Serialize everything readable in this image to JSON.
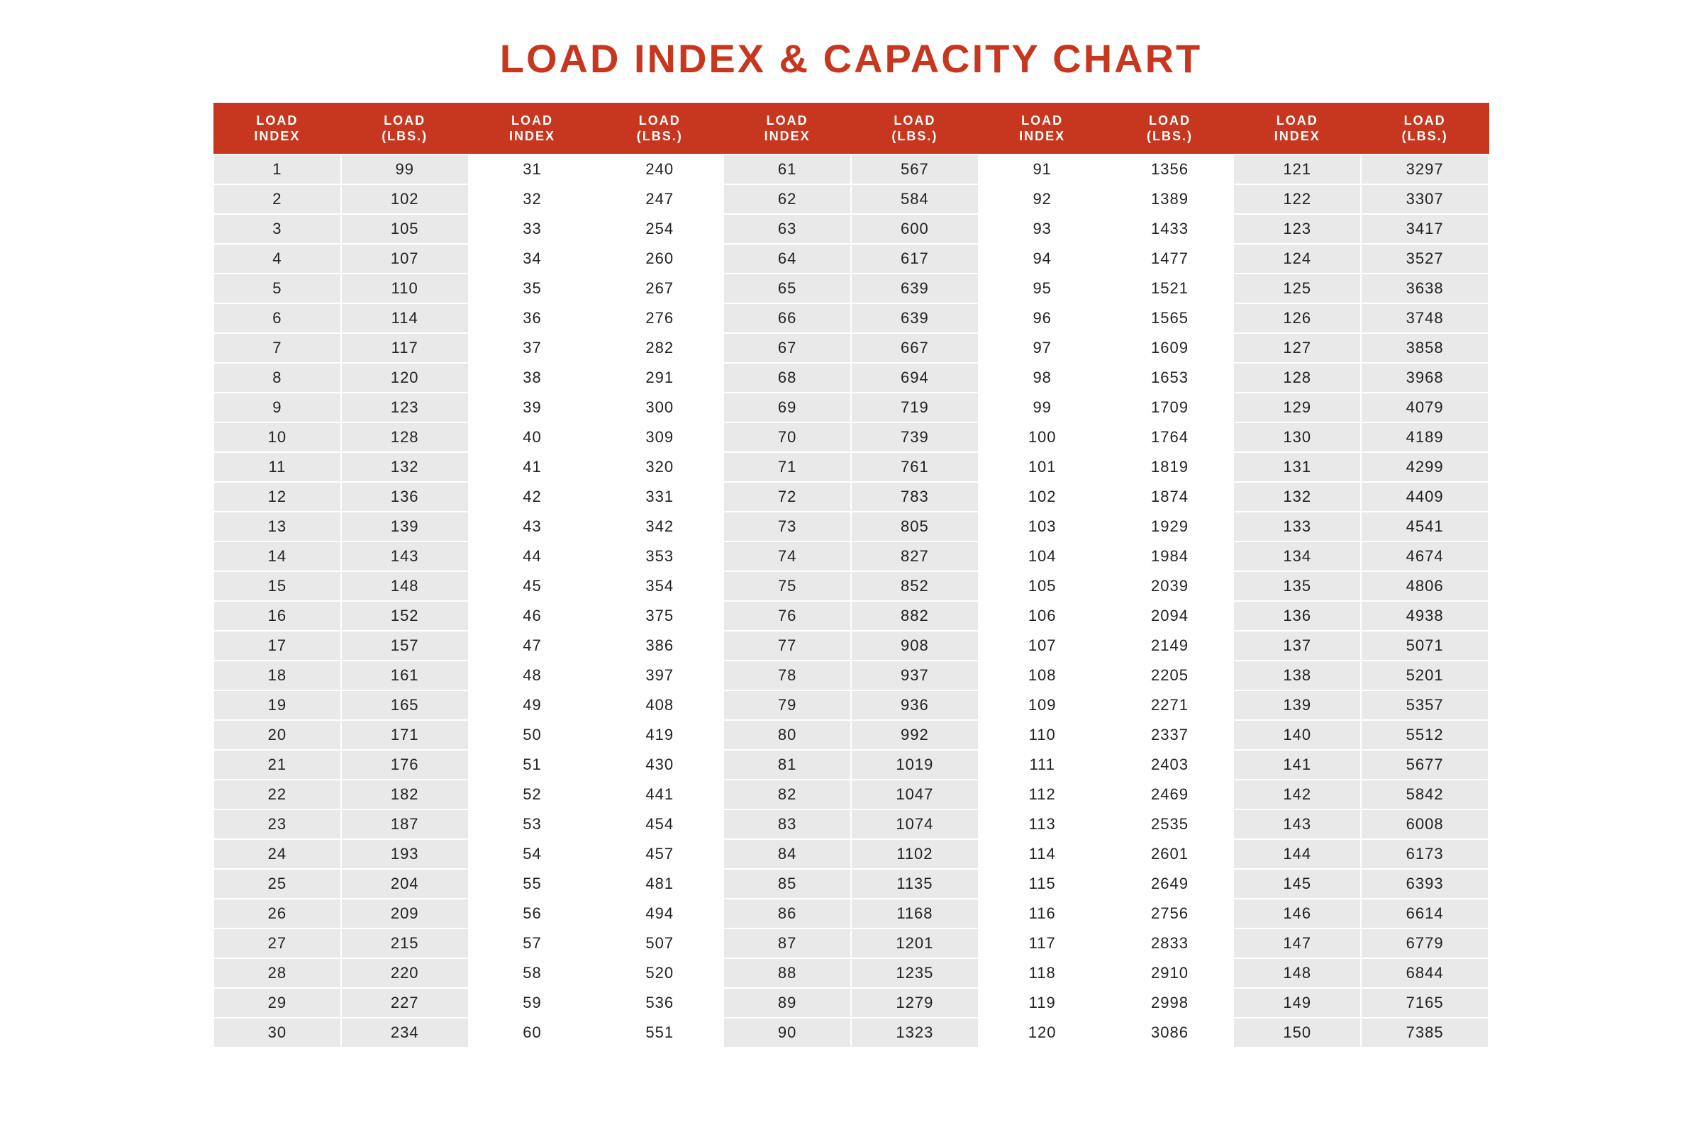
{
  "title": "LOAD INDEX & CAPACITY CHART",
  "header_label_index": "LOAD INDEX",
  "header_label_lbs": "LOAD (LBS.)",
  "colors": {
    "accent": "#c7371f",
    "shade_bg": "#e9e9e9",
    "plain_bg": "#ffffff",
    "text": "#222222"
  },
  "layout": {
    "column_groups": 5,
    "rows_per_group": 30,
    "shaded_group_indices": [
      0,
      2,
      4
    ],
    "title_fontsize": 56,
    "header_fontsize": 18,
    "cell_fontsize": 22
  },
  "data": [
    {
      "i": 1,
      "l": 99
    },
    {
      "i": 2,
      "l": 102
    },
    {
      "i": 3,
      "l": 105
    },
    {
      "i": 4,
      "l": 107
    },
    {
      "i": 5,
      "l": 110
    },
    {
      "i": 6,
      "l": 114
    },
    {
      "i": 7,
      "l": 117
    },
    {
      "i": 8,
      "l": 120
    },
    {
      "i": 9,
      "l": 123
    },
    {
      "i": 10,
      "l": 128
    },
    {
      "i": 11,
      "l": 132
    },
    {
      "i": 12,
      "l": 136
    },
    {
      "i": 13,
      "l": 139
    },
    {
      "i": 14,
      "l": 143
    },
    {
      "i": 15,
      "l": 148
    },
    {
      "i": 16,
      "l": 152
    },
    {
      "i": 17,
      "l": 157
    },
    {
      "i": 18,
      "l": 161
    },
    {
      "i": 19,
      "l": 165
    },
    {
      "i": 20,
      "l": 171
    },
    {
      "i": 21,
      "l": 176
    },
    {
      "i": 22,
      "l": 182
    },
    {
      "i": 23,
      "l": 187
    },
    {
      "i": 24,
      "l": 193
    },
    {
      "i": 25,
      "l": 204
    },
    {
      "i": 26,
      "l": 209
    },
    {
      "i": 27,
      "l": 215
    },
    {
      "i": 28,
      "l": 220
    },
    {
      "i": 29,
      "l": 227
    },
    {
      "i": 30,
      "l": 234
    },
    {
      "i": 31,
      "l": 240
    },
    {
      "i": 32,
      "l": 247
    },
    {
      "i": 33,
      "l": 254
    },
    {
      "i": 34,
      "l": 260
    },
    {
      "i": 35,
      "l": 267
    },
    {
      "i": 36,
      "l": 276
    },
    {
      "i": 37,
      "l": 282
    },
    {
      "i": 38,
      "l": 291
    },
    {
      "i": 39,
      "l": 300
    },
    {
      "i": 40,
      "l": 309
    },
    {
      "i": 41,
      "l": 320
    },
    {
      "i": 42,
      "l": 331
    },
    {
      "i": 43,
      "l": 342
    },
    {
      "i": 44,
      "l": 353
    },
    {
      "i": 45,
      "l": 354
    },
    {
      "i": 46,
      "l": 375
    },
    {
      "i": 47,
      "l": 386
    },
    {
      "i": 48,
      "l": 397
    },
    {
      "i": 49,
      "l": 408
    },
    {
      "i": 50,
      "l": 419
    },
    {
      "i": 51,
      "l": 430
    },
    {
      "i": 52,
      "l": 441
    },
    {
      "i": 53,
      "l": 454
    },
    {
      "i": 54,
      "l": 457
    },
    {
      "i": 55,
      "l": 481
    },
    {
      "i": 56,
      "l": 494
    },
    {
      "i": 57,
      "l": 507
    },
    {
      "i": 58,
      "l": 520
    },
    {
      "i": 59,
      "l": 536
    },
    {
      "i": 60,
      "l": 551
    },
    {
      "i": 61,
      "l": 567
    },
    {
      "i": 62,
      "l": 584
    },
    {
      "i": 63,
      "l": 600
    },
    {
      "i": 64,
      "l": 617
    },
    {
      "i": 65,
      "l": 639
    },
    {
      "i": 66,
      "l": 639
    },
    {
      "i": 67,
      "l": 667
    },
    {
      "i": 68,
      "l": 694
    },
    {
      "i": 69,
      "l": 719
    },
    {
      "i": 70,
      "l": 739
    },
    {
      "i": 71,
      "l": 761
    },
    {
      "i": 72,
      "l": 783
    },
    {
      "i": 73,
      "l": 805
    },
    {
      "i": 74,
      "l": 827
    },
    {
      "i": 75,
      "l": 852
    },
    {
      "i": 76,
      "l": 882
    },
    {
      "i": 77,
      "l": 908
    },
    {
      "i": 78,
      "l": 937
    },
    {
      "i": 79,
      "l": 936
    },
    {
      "i": 80,
      "l": 992
    },
    {
      "i": 81,
      "l": 1019
    },
    {
      "i": 82,
      "l": 1047
    },
    {
      "i": 83,
      "l": 1074
    },
    {
      "i": 84,
      "l": 1102
    },
    {
      "i": 85,
      "l": 1135
    },
    {
      "i": 86,
      "l": 1168
    },
    {
      "i": 87,
      "l": 1201
    },
    {
      "i": 88,
      "l": 1235
    },
    {
      "i": 89,
      "l": 1279
    },
    {
      "i": 90,
      "l": 1323
    },
    {
      "i": 91,
      "l": 1356
    },
    {
      "i": 92,
      "l": 1389
    },
    {
      "i": 93,
      "l": 1433
    },
    {
      "i": 94,
      "l": 1477
    },
    {
      "i": 95,
      "l": 1521
    },
    {
      "i": 96,
      "l": 1565
    },
    {
      "i": 97,
      "l": 1609
    },
    {
      "i": 98,
      "l": 1653
    },
    {
      "i": 99,
      "l": 1709
    },
    {
      "i": 100,
      "l": 1764
    },
    {
      "i": 101,
      "l": 1819
    },
    {
      "i": 102,
      "l": 1874
    },
    {
      "i": 103,
      "l": 1929
    },
    {
      "i": 104,
      "l": 1984
    },
    {
      "i": 105,
      "l": 2039
    },
    {
      "i": 106,
      "l": 2094
    },
    {
      "i": 107,
      "l": 2149
    },
    {
      "i": 108,
      "l": 2205
    },
    {
      "i": 109,
      "l": 2271
    },
    {
      "i": 110,
      "l": 2337
    },
    {
      "i": 111,
      "l": 2403
    },
    {
      "i": 112,
      "l": 2469
    },
    {
      "i": 113,
      "l": 2535
    },
    {
      "i": 114,
      "l": 2601
    },
    {
      "i": 115,
      "l": 2649
    },
    {
      "i": 116,
      "l": 2756
    },
    {
      "i": 117,
      "l": 2833
    },
    {
      "i": 118,
      "l": 2910
    },
    {
      "i": 119,
      "l": 2998
    },
    {
      "i": 120,
      "l": 3086
    },
    {
      "i": 121,
      "l": 3297
    },
    {
      "i": 122,
      "l": 3307
    },
    {
      "i": 123,
      "l": 3417
    },
    {
      "i": 124,
      "l": 3527
    },
    {
      "i": 125,
      "l": 3638
    },
    {
      "i": 126,
      "l": 3748
    },
    {
      "i": 127,
      "l": 3858
    },
    {
      "i": 128,
      "l": 3968
    },
    {
      "i": 129,
      "l": 4079
    },
    {
      "i": 130,
      "l": 4189
    },
    {
      "i": 131,
      "l": 4299
    },
    {
      "i": 132,
      "l": 4409
    },
    {
      "i": 133,
      "l": 4541
    },
    {
      "i": 134,
      "l": 4674
    },
    {
      "i": 135,
      "l": 4806
    },
    {
      "i": 136,
      "l": 4938
    },
    {
      "i": 137,
      "l": 5071
    },
    {
      "i": 138,
      "l": 5201
    },
    {
      "i": 139,
      "l": 5357
    },
    {
      "i": 140,
      "l": 5512
    },
    {
      "i": 141,
      "l": 5677
    },
    {
      "i": 142,
      "l": 5842
    },
    {
      "i": 143,
      "l": 6008
    },
    {
      "i": 144,
      "l": 6173
    },
    {
      "i": 145,
      "l": 6393
    },
    {
      "i": 146,
      "l": 6614
    },
    {
      "i": 147,
      "l": 6779
    },
    {
      "i": 148,
      "l": 6844
    },
    {
      "i": 149,
      "l": 7165
    },
    {
      "i": 150,
      "l": 7385
    }
  ]
}
